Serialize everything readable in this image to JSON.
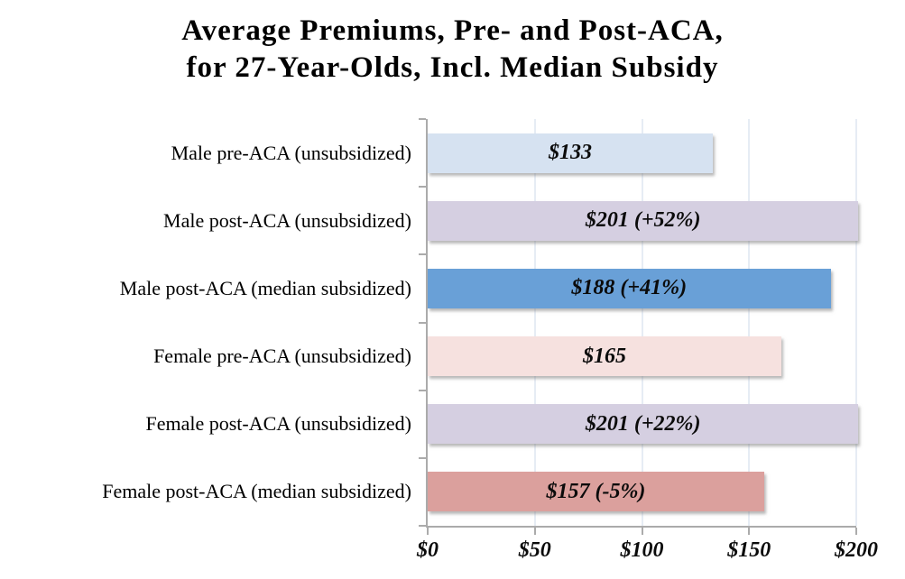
{
  "chart_data": {
    "type": "bar",
    "orientation": "horizontal",
    "title": "Average Premiums, Pre- and Post-ACA, for 27-Year-Olds, Incl. Median Subsidy",
    "title_lines": [
      "Average Premiums, Pre- and Post-ACA,",
      "for 27-Year-Olds, Incl. Median Subsidy"
    ],
    "categories": [
      "Male pre-ACA (unsubsidized)",
      "Male post-ACA (unsubsidized)",
      "Male post-ACA (median subsidized)",
      "Female pre-ACA (unsubsidized)",
      "Female post-ACA (unsubsidized)",
      "Female post-ACA (median subsidized)"
    ],
    "values": [
      133,
      201,
      188,
      165,
      201,
      157
    ],
    "bar_labels": [
      "$133",
      "$201 (+52%)",
      "$188 (+41%)",
      "$165",
      "$201 (+22%)",
      "$157 (-5%)"
    ],
    "bar_colors": [
      "#D6E2F1",
      "#D5CFE1",
      "#69A0D7",
      "#F6E1DF",
      "#D5CFE1",
      "#DBA09D"
    ],
    "xlabel": "",
    "ylabel": "",
    "xlim": [
      0,
      200
    ],
    "x_tick_values": [
      0,
      50,
      100,
      150,
      200
    ],
    "x_tick_labels": [
      "$0",
      "$50",
      "$100",
      "$150",
      "$200"
    ],
    "grid": true,
    "legend_position": "none",
    "colors": {
      "axis": "#ABABAB",
      "gridline": "#E6ECF4",
      "text": "#000000",
      "background": "#FFFFFF"
    }
  }
}
